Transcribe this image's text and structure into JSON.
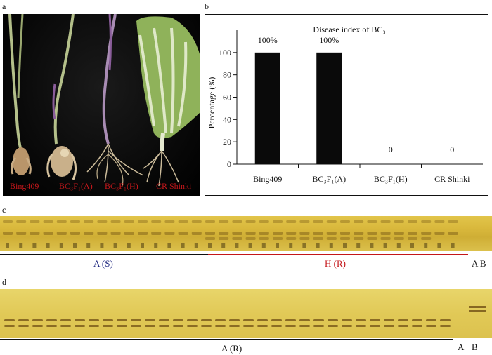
{
  "panels": {
    "a": "a",
    "b": "b",
    "c": "c",
    "d": "d"
  },
  "photo_labels": [
    {
      "text": "Bing409"
    },
    {
      "text": "BC₃F₁(A)"
    },
    {
      "text": "BC₃F₁(H)"
    },
    {
      "text": "CR Shinki"
    }
  ],
  "chart_data": {
    "type": "bar",
    "title": "Disease index of BC₃",
    "ylabel": "Percentage (%)",
    "xlabel": "",
    "categories": [
      "Bing409",
      "BC₃F₁(A)",
      "BC₃F₁(H)",
      "CR Shinki"
    ],
    "values": [
      100,
      100,
      0,
      0
    ],
    "data_labels": [
      "100%",
      "100%",
      "0",
      "0"
    ],
    "ylim": [
      0,
      120
    ],
    "yticks": [
      0,
      20,
      40,
      60,
      80,
      100
    ],
    "bar_color": "#0a0a0a",
    "grid": false
  },
  "gel_c": {
    "groups": [
      {
        "label": "A (S)",
        "color": "#1a237e",
        "line_color": "#111111"
      },
      {
        "label": "H (R)",
        "color": "#c4171b",
        "line_color": "#c4171b"
      }
    ],
    "ladder_label": "A B",
    "bg_color": "#d9b83c",
    "band_color": "#8a6a1c"
  },
  "gel_d": {
    "group_label": "A (R)",
    "ladder_labels": [
      "A",
      "B"
    ],
    "bg_color": "#e1c957",
    "band_color": "#6f4d14"
  }
}
